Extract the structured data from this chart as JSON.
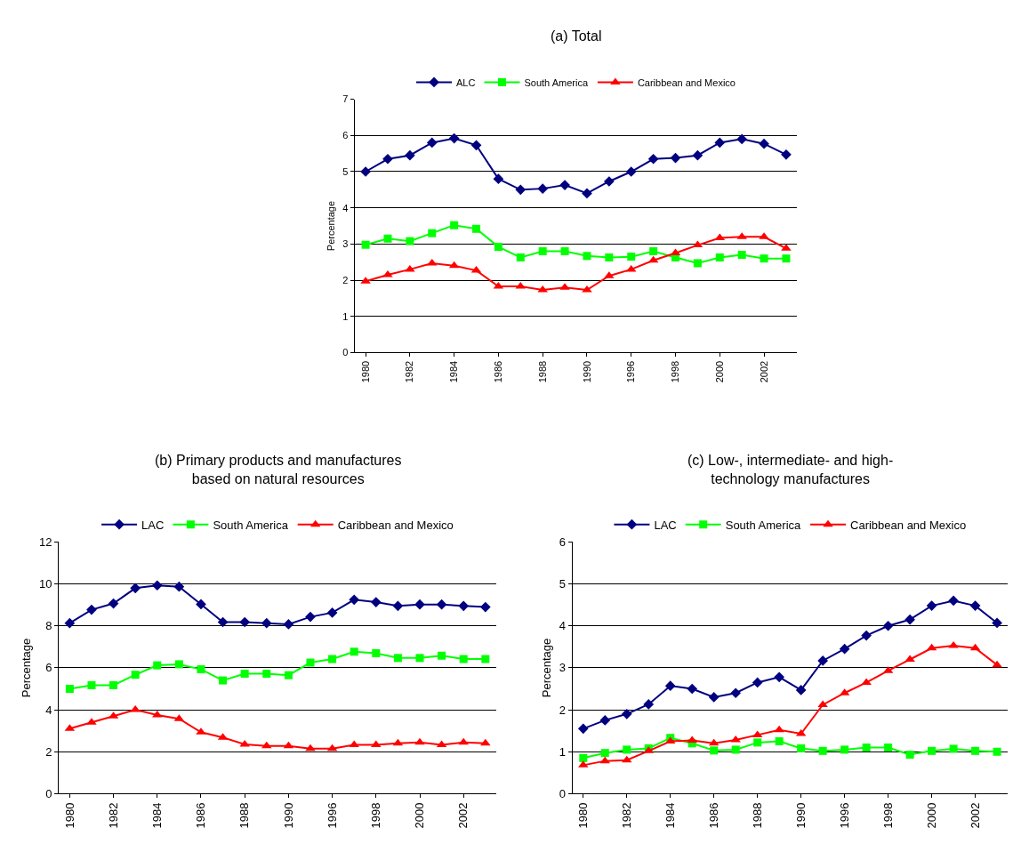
{
  "chart_data": [
    {
      "type": "line",
      "title": "(a) Total",
      "ylabel": "Percentage",
      "categories": [
        "1980",
        null,
        "1982",
        null,
        "1984",
        null,
        "1986",
        null,
        "1988",
        null,
        "1990",
        null,
        "1996",
        null,
        "1998",
        null,
        "2000",
        null,
        "2002",
        null
      ],
      "ylim": [
        0,
        7
      ],
      "yticks": [
        0,
        1,
        2,
        3,
        4,
        5,
        6,
        7
      ],
      "grid": "y",
      "legend": "top",
      "series": [
        {
          "name": "ALC",
          "color": "#000080",
          "marker": "diamond",
          "values": [
            5.0,
            5.35,
            5.45,
            5.8,
            5.92,
            5.73,
            4.8,
            4.5,
            4.53,
            4.63,
            4.4,
            4.73,
            5.0,
            5.35,
            5.38,
            5.45,
            5.8,
            5.9,
            5.77,
            5.47
          ]
        },
        {
          "name": "South America",
          "color": "#00ff00",
          "marker": "square",
          "values": [
            2.98,
            3.15,
            3.08,
            3.3,
            3.52,
            3.42,
            2.92,
            2.63,
            2.8,
            2.8,
            2.67,
            2.63,
            2.65,
            2.8,
            2.63,
            2.47,
            2.63,
            2.7,
            2.6,
            2.6
          ]
        },
        {
          "name": "Caribbean and Mexico",
          "color": "#ff0000",
          "marker": "triangle",
          "values": [
            1.97,
            2.15,
            2.3,
            2.47,
            2.4,
            2.27,
            1.83,
            1.83,
            1.73,
            1.8,
            1.73,
            2.12,
            2.3,
            2.55,
            2.75,
            2.97,
            3.17,
            3.2,
            3.2,
            2.88
          ]
        }
      ]
    },
    {
      "type": "line",
      "title": "(b) Primary products and manufactures based on natural resources",
      "ylabel": "Percentage",
      "categories": [
        "1980",
        null,
        "1982",
        null,
        "1984",
        null,
        "1986",
        null,
        "1988",
        null,
        "1990",
        null,
        "1996",
        null,
        "1998",
        null,
        "2000",
        null,
        "2002",
        null
      ],
      "ylim": [
        0,
        12
      ],
      "yticks": [
        0,
        2,
        4,
        6,
        8,
        10,
        12
      ],
      "grid": "y",
      "legend": "top",
      "series": [
        {
          "name": "LAC",
          "color": "#000080",
          "marker": "diamond",
          "values": [
            8.13,
            8.77,
            9.07,
            9.8,
            9.93,
            9.87,
            9.03,
            8.18,
            8.18,
            8.13,
            8.08,
            8.43,
            8.63,
            9.25,
            9.13,
            8.95,
            9.02,
            9.02,
            8.95,
            8.9
          ]
        },
        {
          "name": "South America",
          "color": "#00ff00",
          "marker": "square",
          "values": [
            5.0,
            5.17,
            5.17,
            5.67,
            6.12,
            6.17,
            5.93,
            5.4,
            5.72,
            5.72,
            5.65,
            6.25,
            6.42,
            6.77,
            6.7,
            6.47,
            6.47,
            6.58,
            6.42,
            6.42
          ]
        },
        {
          "name": "Caribbean and Mexico",
          "color": "#ff0000",
          "marker": "triangle",
          "values": [
            3.1,
            3.4,
            3.7,
            4.0,
            3.75,
            3.57,
            2.93,
            2.68,
            2.35,
            2.28,
            2.28,
            2.15,
            2.15,
            2.33,
            2.33,
            2.4,
            2.45,
            2.33,
            2.45,
            2.4
          ]
        }
      ]
    },
    {
      "type": "line",
      "title": "(c) Low-, intermediate- and high-technology manufactures",
      "ylabel": "Percentage",
      "categories": [
        "1980",
        null,
        "1982",
        null,
        "1984",
        null,
        "1986",
        null,
        "1988",
        null,
        "1990",
        null,
        "1996",
        null,
        "1998",
        null,
        "2000",
        null,
        "2002",
        null
      ],
      "ylim": [
        0,
        6
      ],
      "yticks": [
        0,
        1,
        2,
        3,
        4,
        5,
        6
      ],
      "grid": "y",
      "legend": "top",
      "series": [
        {
          "name": "LAC",
          "color": "#000080",
          "marker": "diamond",
          "values": [
            1.55,
            1.75,
            1.9,
            2.13,
            2.57,
            2.5,
            2.3,
            2.4,
            2.65,
            2.78,
            2.47,
            3.17,
            3.45,
            3.77,
            4.0,
            4.15,
            4.48,
            4.6,
            4.48,
            4.07
          ]
        },
        {
          "name": "South America",
          "color": "#00ff00",
          "marker": "square",
          "values": [
            0.85,
            0.97,
            1.05,
            1.08,
            1.33,
            1.2,
            1.03,
            1.05,
            1.22,
            1.25,
            1.08,
            1.02,
            1.05,
            1.1,
            1.1,
            0.93,
            1.02,
            1.07,
            1.02,
            1.0
          ]
        },
        {
          "name": "Caribbean and Mexico",
          "color": "#ff0000",
          "marker": "triangle",
          "values": [
            0.68,
            0.78,
            0.8,
            1.02,
            1.25,
            1.27,
            1.2,
            1.28,
            1.4,
            1.52,
            1.43,
            2.12,
            2.4,
            2.65,
            2.93,
            3.2,
            3.47,
            3.53,
            3.47,
            3.07
          ]
        }
      ]
    }
  ]
}
